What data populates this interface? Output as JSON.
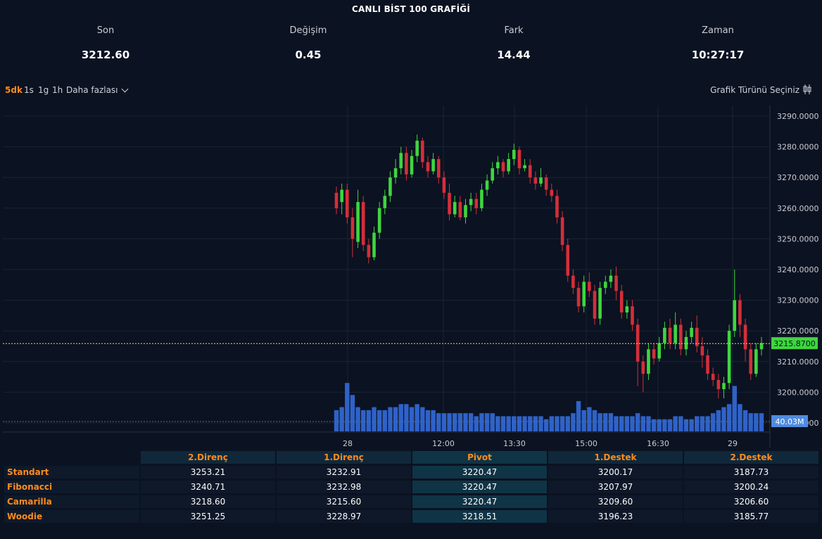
{
  "title": "CANLI BİST 100 GRAFİĞİ",
  "stats": [
    {
      "label": "Son",
      "value": "3212.60"
    },
    {
      "label": "Değişim",
      "value": "0.45"
    },
    {
      "label": "Fark",
      "value": "14.44"
    },
    {
      "label": "Zaman",
      "value": "10:27:17"
    }
  ],
  "toolbar": {
    "timeframes": [
      "5dk",
      "1s",
      "1g",
      "1h"
    ],
    "active": "5dk",
    "more_label": "Daha fazlası",
    "chart_type_label": "Grafik Türünü Seçiniz"
  },
  "colors": {
    "up": "#4caf50",
    "up_bright": "#3ed63e",
    "down": "#d32f3a",
    "volume": "#2f62c8",
    "accent": "#ff8c1a",
    "price_line": "#e8e85a"
  },
  "chart_data": {
    "type": "candlestick",
    "x_tick_labels": [
      "28",
      "12:00",
      "13:30",
      "15:00",
      "16:30",
      "29"
    ],
    "y_tick_labels": [
      "3290.0000",
      "3280.0000",
      "3270.0000",
      "3260.0000",
      "3250.0000",
      "3240.0000",
      "3230.0000",
      "3220.0000",
      "3210.0000",
      "3200.0000",
      "3190.0000"
    ],
    "ylim": [
      3190,
      3292
    ],
    "last_price_label": "3215.8700",
    "last_price": 3215.87,
    "volume_label": "40.03M",
    "grid": true,
    "candles": [
      [
        3265,
        3260,
        3267,
        3258
      ],
      [
        3262,
        3266,
        3268,
        3258
      ],
      [
        3266,
        3257,
        3268,
        3255
      ],
      [
        3257,
        3250,
        3260,
        3244
      ],
      [
        3249,
        3262,
        3266,
        3247
      ],
      [
        3262,
        3248,
        3264,
        3246
      ],
      [
        3248,
        3244,
        3250,
        3242
      ],
      [
        3244,
        3252,
        3254,
        3243
      ],
      [
        3252,
        3260,
        3262,
        3250
      ],
      [
        3260,
        3264,
        3266,
        3258
      ],
      [
        3264,
        3270,
        3272,
        3262
      ],
      [
        3270,
        3273,
        3276,
        3268
      ],
      [
        3273,
        3278,
        3280,
        3271
      ],
      [
        3278,
        3271,
        3280,
        3269
      ],
      [
        3271,
        3277,
        3279,
        3270
      ],
      [
        3277,
        3282,
        3284,
        3275
      ],
      [
        3282,
        3275,
        3283,
        3273
      ],
      [
        3275,
        3272,
        3277,
        3270
      ],
      [
        3272,
        3276,
        3278,
        3271
      ],
      [
        3276,
        3270,
        3277,
        3268
      ],
      [
        3270,
        3265,
        3272,
        3263
      ],
      [
        3265,
        3258,
        3268,
        3256
      ],
      [
        3258,
        3262,
        3264,
        3257
      ],
      [
        3262,
        3257,
        3264,
        3256
      ],
      [
        3257,
        3261,
        3263,
        3255
      ],
      [
        3261,
        3263,
        3265,
        3259
      ],
      [
        3263,
        3260,
        3265,
        3258
      ],
      [
        3260,
        3266,
        3268,
        3259
      ],
      [
        3266,
        3269,
        3271,
        3264
      ],
      [
        3269,
        3273,
        3275,
        3268
      ],
      [
        3273,
        3275,
        3277,
        3271
      ],
      [
        3275,
        3272,
        3276,
        3270
      ],
      [
        3272,
        3276,
        3278,
        3271
      ],
      [
        3276,
        3279,
        3281,
        3274
      ],
      [
        3279,
        3273,
        3280,
        3271
      ],
      [
        3273,
        3274,
        3276,
        3272
      ],
      [
        3274,
        3270,
        3276,
        3268
      ],
      [
        3270,
        3268,
        3272,
        3266
      ],
      [
        3268,
        3270,
        3273,
        3267
      ],
      [
        3270,
        3266,
        3271,
        3264
      ],
      [
        3266,
        3264,
        3268,
        3262
      ],
      [
        3264,
        3257,
        3266,
        3255
      ],
      [
        3257,
        3248,
        3259,
        3246
      ],
      [
        3248,
        3238,
        3250,
        3236
      ],
      [
        3238,
        3234,
        3240,
        3232
      ],
      [
        3234,
        3228,
        3236,
        3226
      ],
      [
        3228,
        3236,
        3238,
        3226
      ],
      [
        3236,
        3233,
        3239,
        3231
      ],
      [
        3233,
        3224,
        3235,
        3222
      ],
      [
        3224,
        3234,
        3236,
        3222
      ],
      [
        3234,
        3236,
        3238,
        3232
      ],
      [
        3236,
        3238,
        3240,
        3234
      ],
      [
        3238,
        3233,
        3241,
        3230
      ],
      [
        3233,
        3226,
        3235,
        3224
      ],
      [
        3226,
        3228,
        3230,
        3224
      ],
      [
        3228,
        3222,
        3230,
        3220
      ],
      [
        3222,
        3210,
        3224,
        3202
      ],
      [
        3210,
        3206,
        3212,
        3200
      ],
      [
        3206,
        3214,
        3216,
        3204
      ],
      [
        3214,
        3211,
        3216,
        3209
      ],
      [
        3211,
        3216,
        3218,
        3210
      ],
      [
        3216,
        3221,
        3223,
        3214
      ],
      [
        3221,
        3216,
        3224,
        3214
      ],
      [
        3216,
        3222,
        3226,
        3214
      ],
      [
        3222,
        3214,
        3224,
        3212
      ],
      [
        3214,
        3218,
        3220,
        3212
      ],
      [
        3218,
        3221,
        3223,
        3216
      ],
      [
        3221,
        3215,
        3225,
        3213
      ],
      [
        3215,
        3212,
        3218,
        3208
      ],
      [
        3212,
        3206,
        3214,
        3204
      ],
      [
        3206,
        3204,
        3208,
        3202
      ],
      [
        3204,
        3201,
        3206,
        3198
      ],
      [
        3201,
        3203,
        3205,
        3198
      ],
      [
        3203,
        3220,
        3222,
        3201
      ],
      [
        3220,
        3230,
        3240,
        3218
      ],
      [
        3230,
        3222,
        3232,
        3218
      ],
      [
        3222,
        3214,
        3224,
        3210
      ],
      [
        3214,
        3206,
        3216,
        3204
      ],
      [
        3206,
        3214,
        3216,
        3205
      ],
      [
        3214,
        3216,
        3218,
        3212
      ]
    ],
    "volumes": [
      7,
      8,
      16,
      12,
      8,
      7,
      7,
      8,
      7,
      7,
      8,
      8,
      9,
      9,
      8,
      9,
      8,
      7,
      7,
      6,
      6,
      6,
      6,
      6,
      6,
      6,
      5,
      6,
      6,
      6,
      5,
      5,
      5,
      5,
      5,
      5,
      5,
      5,
      5,
      4,
      5,
      5,
      5,
      5,
      6,
      10,
      7,
      8,
      7,
      6,
      6,
      6,
      5,
      5,
      5,
      5,
      6,
      5,
      5,
      4,
      4,
      4,
      4,
      5,
      5,
      4,
      4,
      5,
      5,
      5,
      6,
      7,
      8,
      9,
      15,
      9,
      7,
      6,
      6,
      6
    ]
  },
  "pivot_table": {
    "headers": [
      "2.Direnç",
      "1.Direnç",
      "Pivot",
      "1.Destek",
      "2.Destek"
    ],
    "rows": [
      {
        "label": "Standart",
        "values": [
          "3253.21",
          "3232.91",
          "3220.47",
          "3200.17",
          "3187.73"
        ]
      },
      {
        "label": "Fibonacci",
        "values": [
          "3240.71",
          "3232.98",
          "3220.47",
          "3207.97",
          "3200.24"
        ]
      },
      {
        "label": "Camarilla",
        "values": [
          "3218.60",
          "3215.60",
          "3220.47",
          "3209.60",
          "3206.60"
        ]
      },
      {
        "label": "Woodie",
        "values": [
          "3251.25",
          "3228.97",
          "3218.51",
          "3196.23",
          "3185.77"
        ]
      }
    ]
  }
}
